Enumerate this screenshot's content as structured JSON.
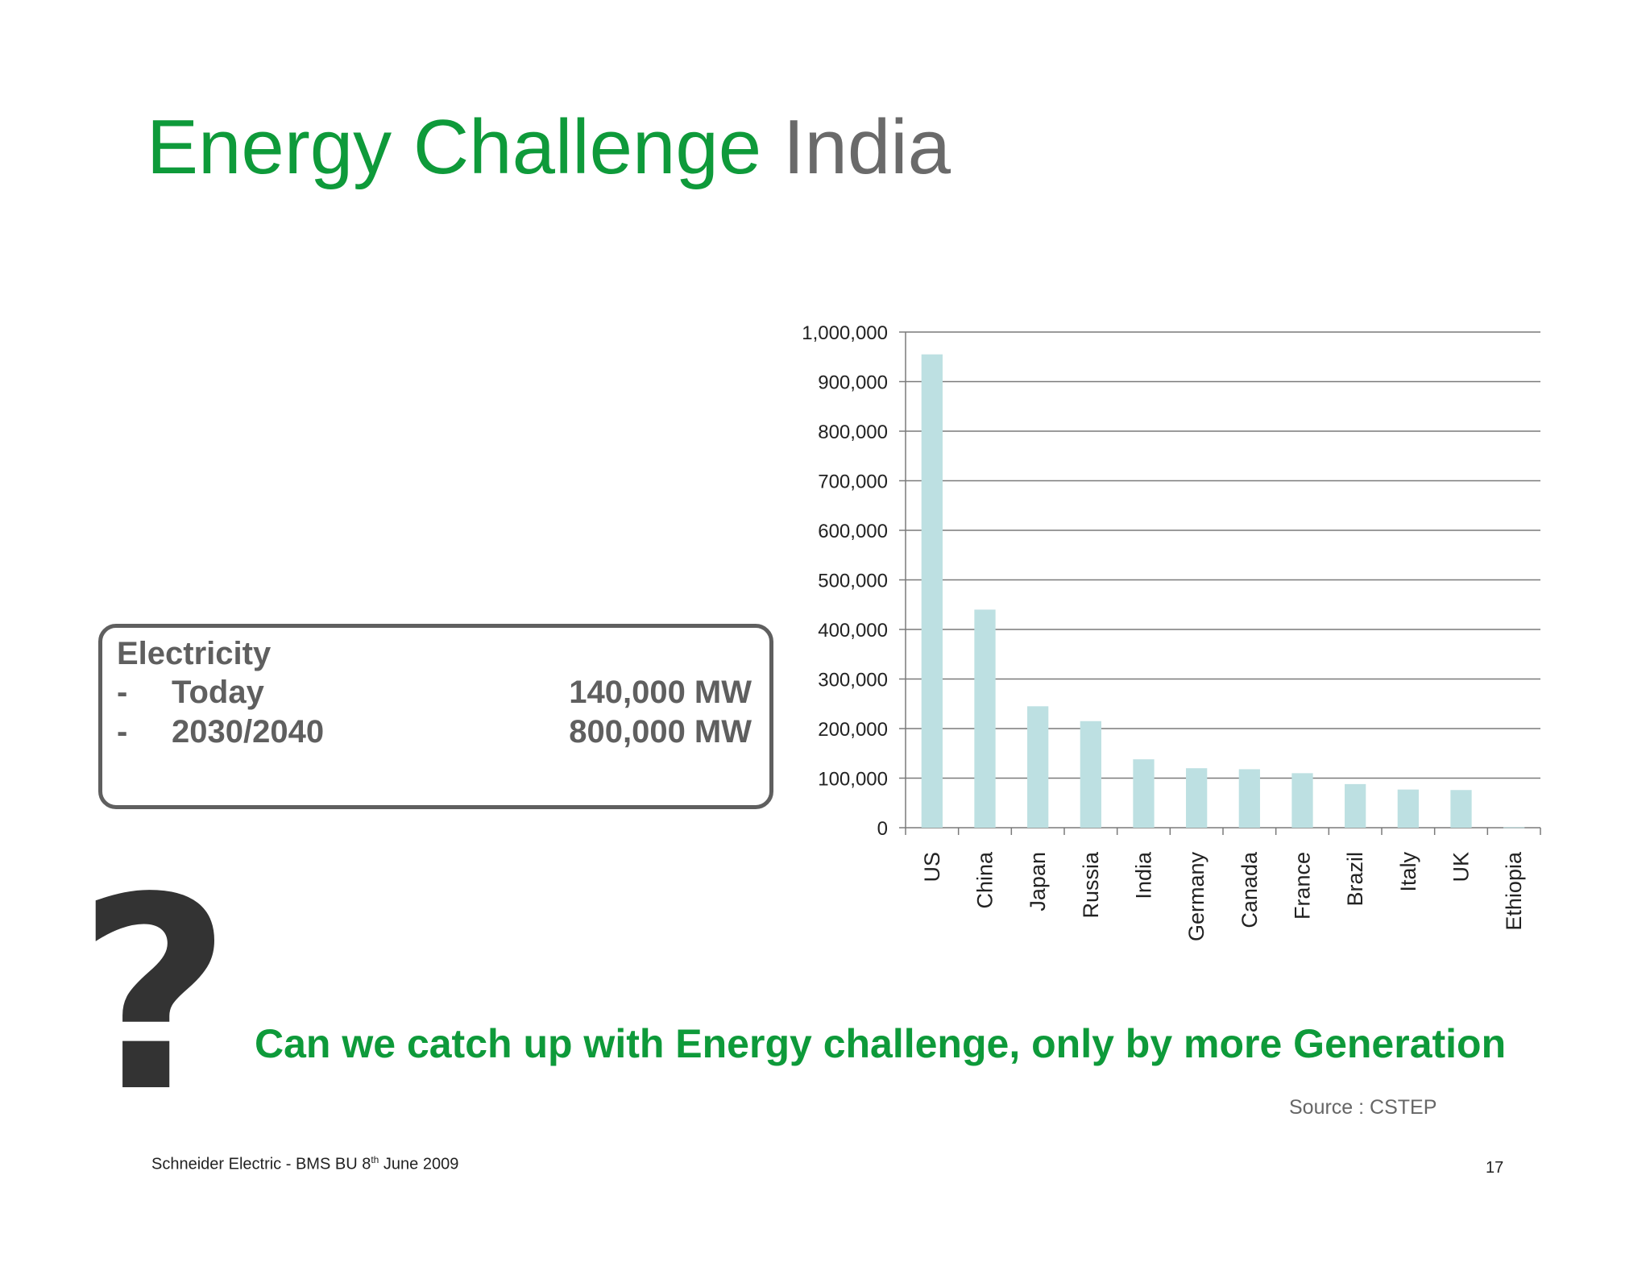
{
  "slide": {
    "title_part1": "Energy Challenge",
    "title_part2": "India",
    "title_colors": {
      "primary": "#0e9a3a",
      "secondary": "#6a6a6a"
    }
  },
  "info_box": {
    "heading": "Electricity",
    "rows": [
      {
        "dash": "-",
        "label": "Today",
        "value": "140,000 MW"
      },
      {
        "dash": "-",
        "label": "2030/2040",
        "value": "800,000 MW"
      }
    ]
  },
  "chart_data": {
    "type": "bar",
    "categories": [
      "US",
      "China",
      "Japan",
      "Russia",
      "India",
      "Germany",
      "Canada",
      "France",
      "Brazil",
      "Italy",
      "UK",
      "Ethiopia"
    ],
    "values": [
      955000,
      440000,
      245000,
      215000,
      138000,
      120000,
      118000,
      110000,
      88000,
      77000,
      76000,
      1000
    ],
    "y_ticks": [
      "0",
      "100,000",
      "200,000",
      "300,000",
      "400,000",
      "500,000",
      "600,000",
      "700,000",
      "800,000",
      "900,000",
      "1,000,000"
    ],
    "ylim": [
      0,
      1000000
    ],
    "grid": true,
    "bar_color": "#bde0e2",
    "title": "",
    "xlabel": "",
    "ylabel": ""
  },
  "question_icon": "question-mark-icon",
  "callout": "Can we catch up with Energy challenge, only by more Generation",
  "source": "Source : CSTEP",
  "footer": {
    "text": "Schneider Electric - BMS BU 8",
    "sup": "th",
    "text_after": " June 2009"
  },
  "page_number": "17"
}
